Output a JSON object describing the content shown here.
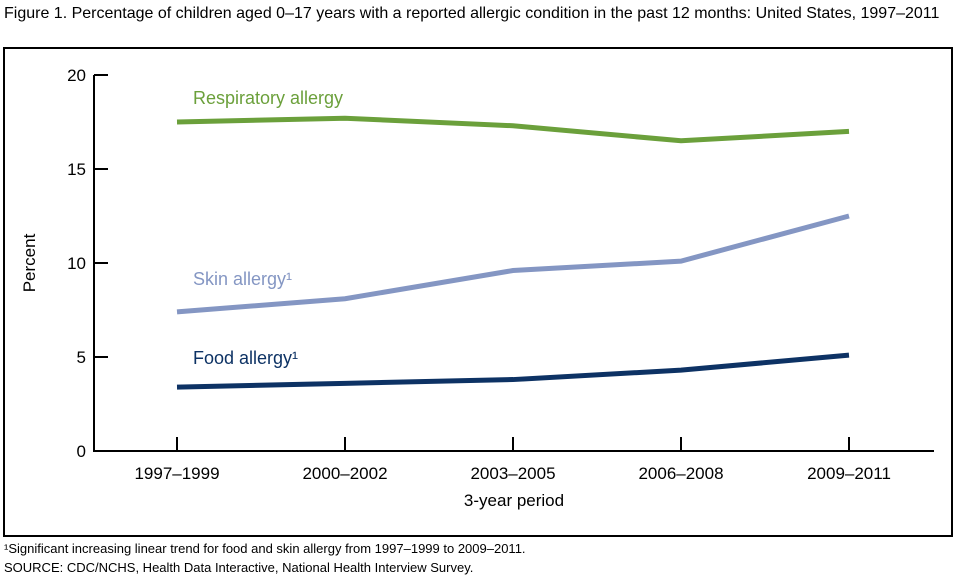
{
  "title": "Figure 1. Percentage of children aged 0–17 years with a reported allergic condition in the past 12 months: United States, 1997–2011",
  "footnotes": {
    "note1": "¹Significant increasing linear trend for food and skin allergy from 1997–1999 to 2009–2011.",
    "source": "SOURCE: CDC/NCHS, Health Data Interactive, National Health Interview Survey."
  },
  "colors": {
    "respiratory": "#6BA03B",
    "skin": "#8496C3",
    "food": "#0D3264",
    "axis": "#000000"
  },
  "chart_data": {
    "type": "line",
    "title": "Figure 1. Percentage of children aged 0–17 years with a reported allergic condition in the past 12 months: United States, 1997–2011",
    "categories": [
      "1997–1999",
      "2000–2002",
      "2003–2005",
      "2006–2008",
      "2009–2011"
    ],
    "series": [
      {
        "name": "Respiratory allergy",
        "label": "Respiratory allergy",
        "values": [
          17.5,
          17.7,
          17.3,
          16.5,
          17.0
        ],
        "color": "#6BA03B"
      },
      {
        "name": "Skin allergy",
        "label": "Skin allergy¹",
        "values": [
          7.4,
          8.1,
          9.6,
          10.1,
          12.5
        ],
        "color": "#8496C3"
      },
      {
        "name": "Food allergy",
        "label": "Food allergy¹",
        "values": [
          3.4,
          3.6,
          3.8,
          4.3,
          5.1
        ],
        "color": "#0D3264"
      }
    ],
    "xlabel": "3-year period",
    "ylabel": "Percent",
    "ylim": [
      0,
      20
    ],
    "yticks": [
      0,
      5,
      10,
      15,
      20
    ],
    "grid": false,
    "legend_position": "inline-labels"
  }
}
